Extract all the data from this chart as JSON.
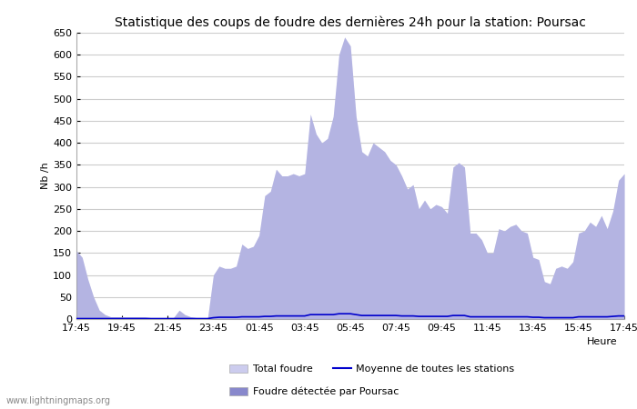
{
  "title": "Statistique des coups de foudre des dernières 24h pour la station: Poursac",
  "ylabel": "Nb /h",
  "xlabel": "Heure",
  "watermark": "www.lightningmaps.org",
  "ylim": [
    0,
    650
  ],
  "yticks": [
    0,
    50,
    100,
    150,
    200,
    250,
    300,
    350,
    400,
    450,
    500,
    550,
    600,
    650
  ],
  "x_labels": [
    "17:45",
    "19:45",
    "21:45",
    "23:45",
    "01:45",
    "03:45",
    "05:45",
    "07:45",
    "09:45",
    "11:45",
    "13:45",
    "15:45",
    "17:45"
  ],
  "legend_total_foudre_label": "Total foudre",
  "legend_moyenne_label": "Moyenne de toutes les stations",
  "legend_foudre_poursac_label": "Foudre détectée par Poursac",
  "color_total_foudre": "#ccccee",
  "color_foudre_poursac": "#8888cc",
  "color_moyenne": "#0000cc",
  "background_color": "#ffffff",
  "plot_background": "#ffffff",
  "grid_color": "#cccccc",
  "title_fontsize": 10,
  "axis_fontsize": 8,
  "tick_fontsize": 8,
  "total_foudre": [
    155,
    140,
    90,
    50,
    20,
    10,
    5,
    5,
    5,
    5,
    5,
    5,
    5,
    3,
    3,
    3,
    3,
    3,
    20,
    10,
    5,
    3,
    3,
    3,
    100,
    120,
    115,
    115,
    120,
    170,
    160,
    165,
    190,
    280,
    290,
    340,
    325,
    325,
    330,
    325,
    330,
    465,
    420,
    400,
    410,
    460,
    600,
    640,
    620,
    460,
    380,
    370,
    400,
    390,
    380,
    360,
    350,
    325,
    295,
    305,
    250,
    270,
    250,
    260,
    255,
    240,
    345,
    355,
    345,
    195,
    195,
    180,
    150,
    150,
    205,
    200,
    210,
    215,
    200,
    195,
    140,
    135,
    85,
    80,
    115,
    120,
    115,
    130,
    195,
    200,
    220,
    210,
    235,
    205,
    245,
    315,
    330
  ],
  "foudre_poursac": [
    155,
    140,
    90,
    50,
    20,
    10,
    5,
    5,
    5,
    5,
    5,
    5,
    5,
    3,
    3,
    3,
    3,
    3,
    20,
    10,
    5,
    3,
    3,
    3,
    100,
    120,
    115,
    115,
    120,
    170,
    160,
    165,
    190,
    280,
    290,
    340,
    325,
    325,
    330,
    325,
    330,
    465,
    420,
    400,
    410,
    460,
    600,
    640,
    620,
    460,
    380,
    370,
    400,
    390,
    380,
    360,
    350,
    325,
    295,
    305,
    250,
    270,
    250,
    260,
    255,
    240,
    345,
    355,
    345,
    195,
    195,
    180,
    150,
    150,
    205,
    200,
    210,
    215,
    200,
    195,
    140,
    135,
    85,
    80,
    115,
    120,
    115,
    130,
    195,
    200,
    220,
    210,
    235,
    205,
    245,
    315,
    330
  ],
  "moyenne": [
    1,
    1,
    1,
    1,
    1,
    1,
    1,
    1,
    1,
    1,
    1,
    1,
    1,
    1,
    1,
    1,
    1,
    1,
    1,
    1,
    1,
    1,
    1,
    1,
    3,
    4,
    4,
    4,
    4,
    5,
    5,
    5,
    5,
    6,
    6,
    7,
    7,
    7,
    7,
    7,
    7,
    10,
    10,
    10,
    10,
    10,
    12,
    12,
    12,
    10,
    8,
    8,
    8,
    8,
    8,
    8,
    8,
    7,
    7,
    7,
    6,
    6,
    6,
    6,
    6,
    6,
    8,
    8,
    8,
    5,
    5,
    5,
    5,
    5,
    5,
    5,
    5,
    5,
    5,
    5,
    4,
    4,
    3,
    3,
    3,
    3,
    3,
    3,
    5,
    5,
    5,
    5,
    5,
    5,
    6,
    7,
    7
  ]
}
